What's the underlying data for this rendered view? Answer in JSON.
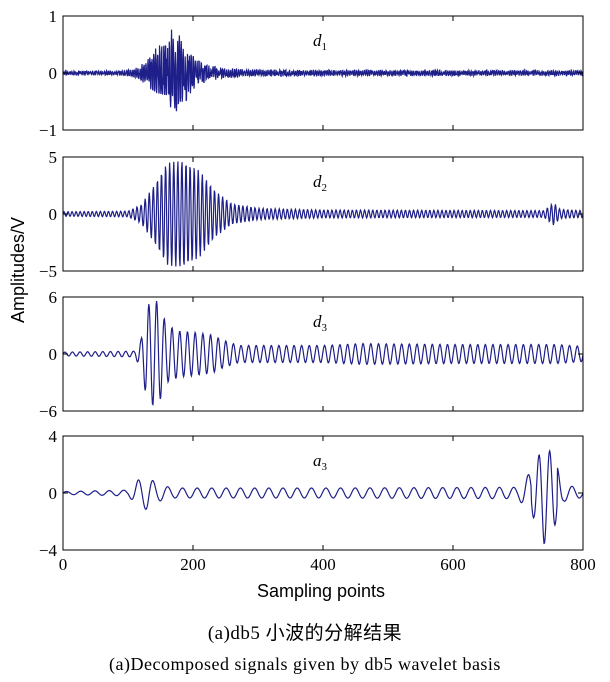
{
  "chart_data": [
    {
      "type": "line",
      "label": "d",
      "sub": "1",
      "ylim": [
        -1,
        1
      ],
      "yticks": [
        -1,
        0,
        1
      ],
      "xlim": [
        0,
        800
      ],
      "envelope": [
        [
          0,
          0.04
        ],
        [
          80,
          0.04
        ],
        [
          110,
          0.08
        ],
        [
          130,
          0.25
        ],
        [
          150,
          0.55
        ],
        [
          168,
          0.78
        ],
        [
          180,
          0.7
        ],
        [
          200,
          0.35
        ],
        [
          215,
          0.2
        ],
        [
          250,
          0.09
        ],
        [
          300,
          0.06
        ],
        [
          800,
          0.05
        ]
      ],
      "color": "#1f1f8a"
    },
    {
      "type": "line",
      "label": "d",
      "sub": "2",
      "ylim": [
        -5,
        5
      ],
      "yticks": [
        -5,
        0,
        5
      ],
      "xlim": [
        0,
        800
      ],
      "envelope": [
        [
          0,
          0.2
        ],
        [
          100,
          0.25
        ],
        [
          120,
          0.8
        ],
        [
          140,
          2.5
        ],
        [
          160,
          4.5
        ],
        [
          185,
          4.7
        ],
        [
          210,
          3.8
        ],
        [
          235,
          2.0
        ],
        [
          260,
          0.9
        ],
        [
          300,
          0.5
        ],
        [
          400,
          0.35
        ],
        [
          740,
          0.3
        ],
        [
          755,
          1.0
        ],
        [
          765,
          0.4
        ],
        [
          800,
          0.3
        ]
      ],
      "color": "#1f1f8a"
    },
    {
      "type": "line",
      "label": "d",
      "sub": "3",
      "ylim": [
        -6,
        6
      ],
      "yticks": [
        -6,
        0,
        6
      ],
      "xlim": [
        0,
        800
      ],
      "envelope": [
        [
          0,
          0.2
        ],
        [
          110,
          0.3
        ],
        [
          120,
          1.5
        ],
        [
          130,
          5.2
        ],
        [
          145,
          5.6
        ],
        [
          160,
          3.0
        ],
        [
          180,
          2.4
        ],
        [
          200,
          2.3
        ],
        [
          230,
          2.0
        ],
        [
          245,
          1.5
        ],
        [
          270,
          0.9
        ],
        [
          400,
          0.9
        ],
        [
          460,
          1.1
        ],
        [
          600,
          1.0
        ],
        [
          760,
          1.0
        ],
        [
          800,
          0.8
        ]
      ],
      "color": "#1f1f8a"
    },
    {
      "type": "line",
      "label": "a",
      "sub": "3",
      "ylim": [
        -4,
        4
      ],
      "yticks": [
        -4,
        0,
        4
      ],
      "xlim": [
        0,
        800
      ],
      "envelope": [
        [
          0,
          0.1
        ],
        [
          100,
          0.2
        ],
        [
          115,
          0.9
        ],
        [
          130,
          1.2
        ],
        [
          145,
          0.6
        ],
        [
          170,
          0.35
        ],
        [
          400,
          0.35
        ],
        [
          700,
          0.4
        ],
        [
          725,
          1.8
        ],
        [
          740,
          3.6
        ],
        [
          755,
          2.5
        ],
        [
          770,
          0.6
        ],
        [
          800,
          0.3
        ]
      ],
      "color": "#1f1f8a"
    }
  ],
  "shared": {
    "xlabel": "Sampling points",
    "ylabel": "Amplitudes/V",
    "xticks": [
      0,
      200,
      400,
      600,
      800
    ]
  },
  "captions": {
    "cn": "(a)db5 小波的分解结果",
    "en": "(a)Decomposed signals given by db5 wavelet basis"
  }
}
